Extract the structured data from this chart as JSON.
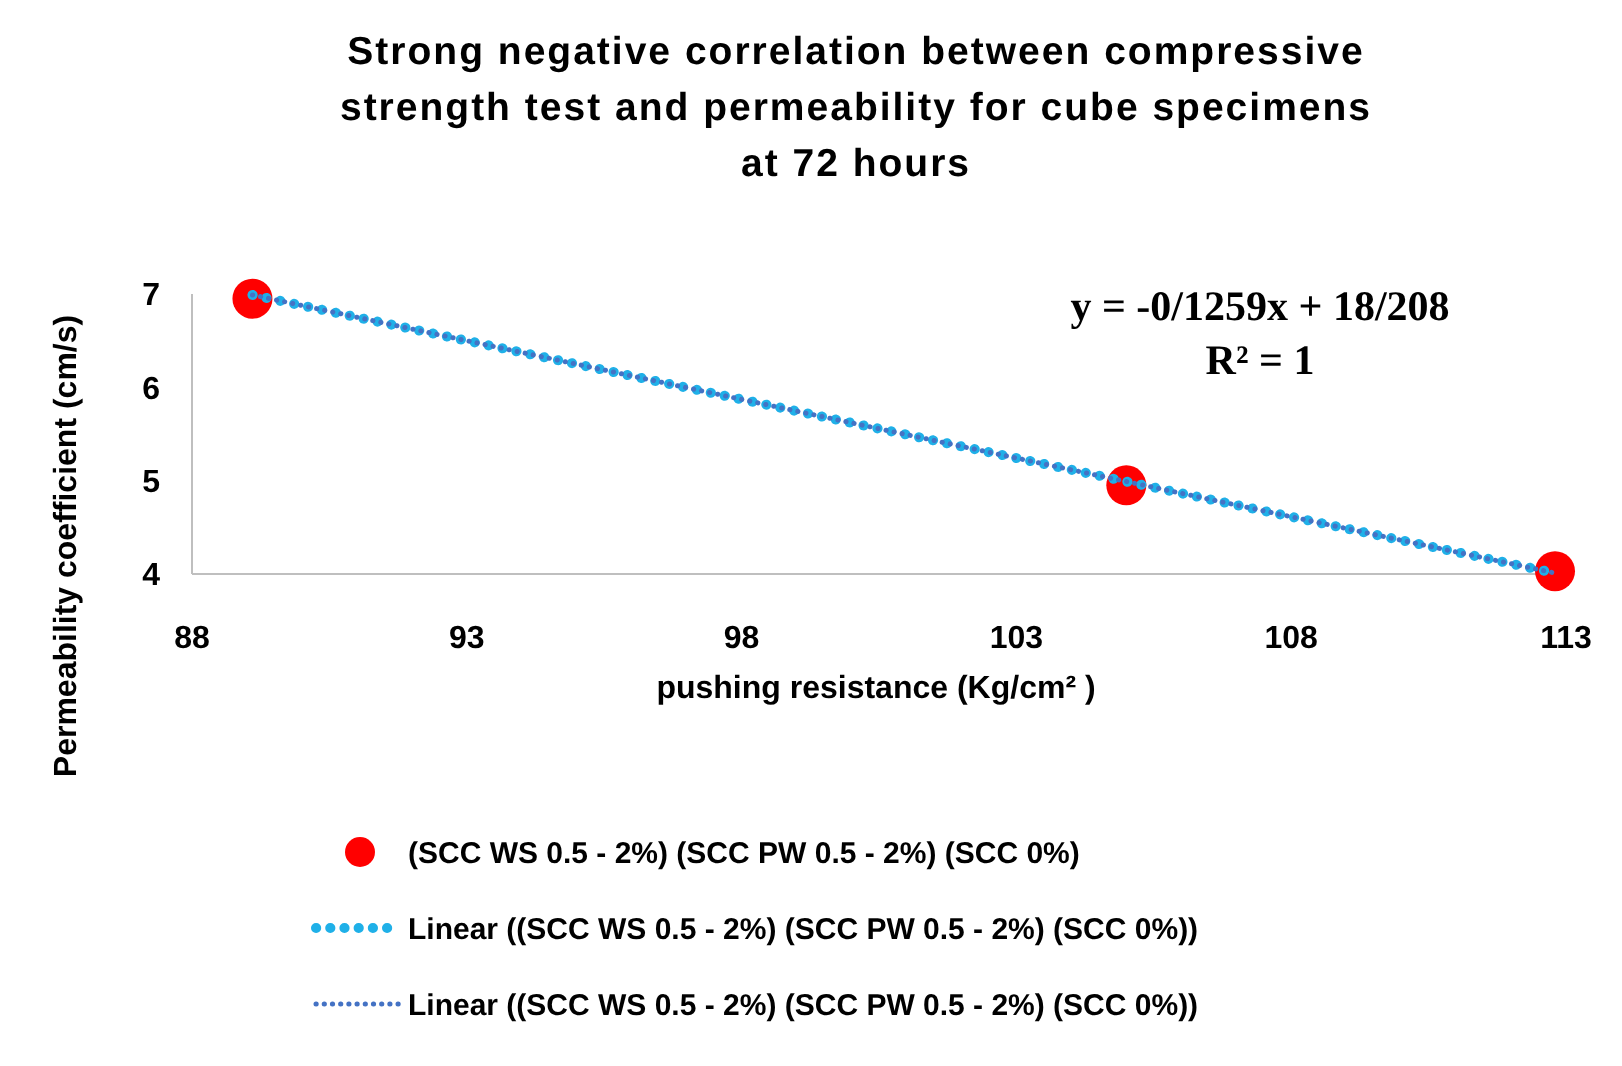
{
  "chart_data": {
    "type": "scatter",
    "title": "Strong negative correlation between compressive strength test and permeability for cube specimens at 72 hours",
    "xlabel": "pushing resistance (Kg/cm² )",
    "ylabel": "Permeability coefficient (cm/s)",
    "xlim": [
      88,
      113
    ],
    "xticks": [
      88,
      93,
      98,
      103,
      108,
      113
    ],
    "ylim": [
      4,
      7
    ],
    "yticks": [
      4,
      5,
      6,
      7
    ],
    "series": [
      {
        "name": "(SCC WS 0.5 - 2%) (SCC PW 0.5 - 2%) (SCC 0%)",
        "type": "scatter",
        "color": "#ff0000",
        "x": [
          89.1,
          105,
          112.8
        ],
        "values": [
          6.95,
          4.95,
          4.03
        ],
        "marker": "circle"
      },
      {
        "name": "Linear ((SCC WS 0.5 - 2%) (SCC PW 0.5 - 2%) (SCC 0%))",
        "type": "line",
        "color": "#1fb0e8",
        "x": [
          89.1,
          112.8
        ],
        "values": [
          6.99,
          4.01
        ],
        "line_style": "dotted"
      },
      {
        "name": "Linear ((SCC WS 0.5 - 2%) (SCC PW 0.5 - 2%) (SCC 0%))",
        "type": "line",
        "color": "#4472c4",
        "x": [
          89.1,
          112.8
        ],
        "values": [
          6.99,
          4.01
        ],
        "line_style": "dotted"
      }
    ],
    "annotations": [
      "y = -0/1259x + 18/208",
      "R² = 1"
    ],
    "legend": "bottom",
    "grid": false
  }
}
